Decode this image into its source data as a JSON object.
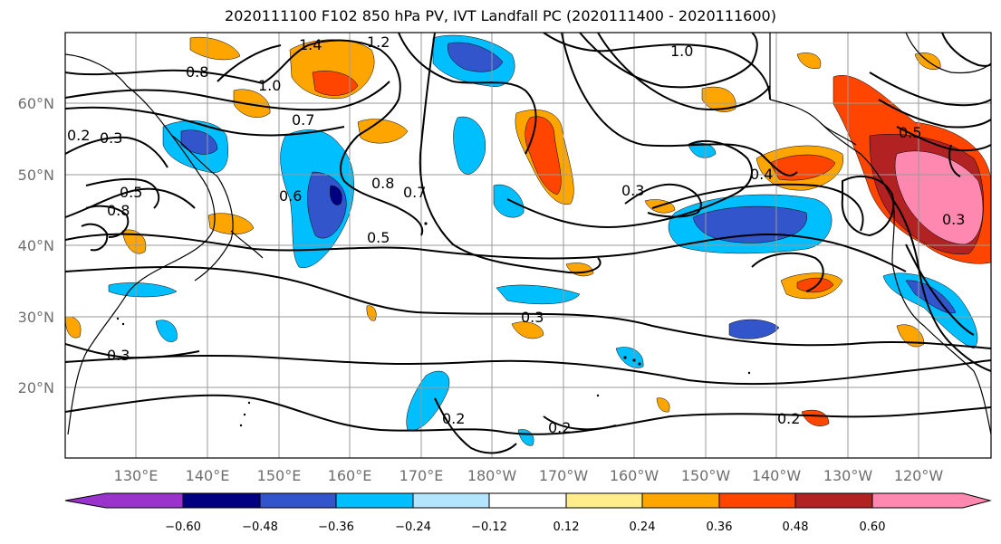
{
  "title": "2020111100 F102 850 hPa PV, IVT Landfall PC (2020111400 - 2020111600)",
  "lon_labels": [
    "130°E",
    "140°E",
    "150°E",
    "160°E",
    "170°E",
    "180°W",
    "170°W",
    "160°W",
    "150°W",
    "140°W",
    "130°W",
    "120°W"
  ],
  "lat_labels": [
    "60°N",
    "50°N",
    "40°N",
    "30°N",
    "20°N"
  ],
  "contour_labels": [
    "1.4",
    "1.2",
    "1.0",
    "0.8",
    "0.7",
    "0.6",
    "0.5",
    "0.3",
    "0.2",
    "0.3",
    "0.2",
    "0.2",
    "0.3",
    "0.5",
    "0.8",
    "1.0",
    "0.3",
    "0.5",
    "0.4",
    "0.3",
    "0.2",
    "0.7",
    "0.8"
  ],
  "colorbar": {
    "tick_labels": [
      "−0.60",
      "−0.48",
      "−0.36",
      "−0.24",
      "−0.12",
      "0.12",
      "0.24",
      "0.36",
      "0.48",
      "0.60"
    ],
    "colors": [
      "#9933cc",
      "#000080",
      "#3355cc",
      "#00bfff",
      "#b3e5ff",
      "#ffffff",
      "#ffec8b",
      "#ffa500",
      "#ff4500",
      "#b22222",
      "#ff88b0"
    ]
  }
}
